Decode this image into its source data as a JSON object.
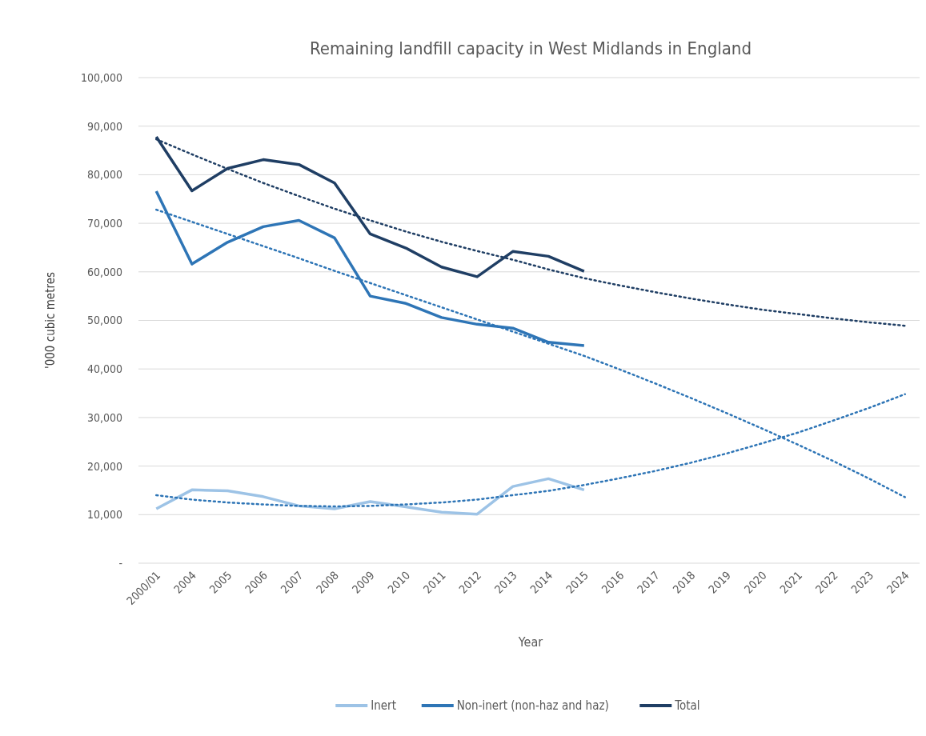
{
  "chart_data": {
    "type": "line",
    "title": "Remaining landfill capacity in West Midlands in England",
    "xlabel": "Year",
    "ylabel": "'000 cubic metres",
    "categories": [
      "2000/01",
      "2004",
      "2005",
      "2006",
      "2007",
      "2008",
      "2009",
      "2010",
      "2011",
      "2012",
      "2013",
      "2014",
      "2015",
      "2016",
      "2017",
      "2018",
      "2019",
      "2020",
      "2021",
      "2022",
      "2023",
      "2024"
    ],
    "series": [
      {
        "name": "Inert",
        "color": "#9dc3e6",
        "values": [
          11200,
          15100,
          14900,
          13700,
          11800,
          11200,
          12700,
          11600,
          10500,
          10100,
          15800,
          17400,
          15100,
          null,
          null,
          null,
          null,
          null,
          null,
          null,
          null,
          null
        ]
      },
      {
        "name": "Non-inert (non-haz and haz)",
        "color": "#2e75b6",
        "values": [
          76600,
          61600,
          66100,
          69300,
          70600,
          67000,
          55000,
          53500,
          50600,
          49200,
          48400,
          45500,
          44800,
          null,
          null,
          null,
          null,
          null,
          null,
          null,
          null,
          null
        ]
      },
      {
        "name": "Total",
        "color": "#1f3e64",
        "values": [
          87800,
          76700,
          81300,
          83100,
          82100,
          78300,
          67800,
          64900,
          61000,
          59000,
          64200,
          63200,
          60100,
          null,
          null,
          null,
          null,
          null,
          null,
          null,
          null,
          null
        ]
      },
      {
        "color": "#2e75b6",
        "line_style": "dotted",
        "values": [
          14000,
          13100,
          12500,
          12100,
          11800,
          11700,
          11800,
          12100,
          12500,
          13100,
          14000,
          14900,
          16100,
          17500,
          19000,
          20700,
          22600,
          24700,
          26900,
          29400,
          32000,
          34800
        ]
      },
      {
        "color": "#2e75b6",
        "line_style": "dotted",
        "values": [
          72800,
          70300,
          67800,
          65300,
          62800,
          60200,
          57700,
          55200,
          52700,
          50200,
          47700,
          45200,
          42700,
          39900,
          37000,
          34000,
          30900,
          27700,
          24400,
          21000,
          17400,
          13600
        ]
      },
      {
        "color": "#1f3e64",
        "line_style": "dotted",
        "values": [
          87300,
          84200,
          81200,
          78300,
          75600,
          73000,
          70600,
          68300,
          66200,
          64300,
          62500,
          60500,
          58700,
          57200,
          55800,
          54500,
          53300,
          52200,
          51300,
          50400,
          49600,
          48900
        ]
      }
    ],
    "ylim": [
      0,
      100000
    ],
    "yticks": [
      {
        "value": 0,
        "label": "-"
      },
      {
        "value": 10000,
        "label": "10,000"
      },
      {
        "value": 20000,
        "label": "20,000"
      },
      {
        "value": 30000,
        "label": "30,000"
      },
      {
        "value": 40000,
        "label": "40,000"
      },
      {
        "value": 50000,
        "label": "50,000"
      },
      {
        "value": 60000,
        "label": "60,000"
      },
      {
        "value": 70000,
        "label": "70,000"
      },
      {
        "value": 80000,
        "label": "80,000"
      },
      {
        "value": 90000,
        "label": "90,000"
      },
      {
        "value": 100000,
        "label": "100,000"
      }
    ],
    "grid": "y",
    "legend": "bottom",
    "marker": "none",
    "line_style": "solid"
  }
}
